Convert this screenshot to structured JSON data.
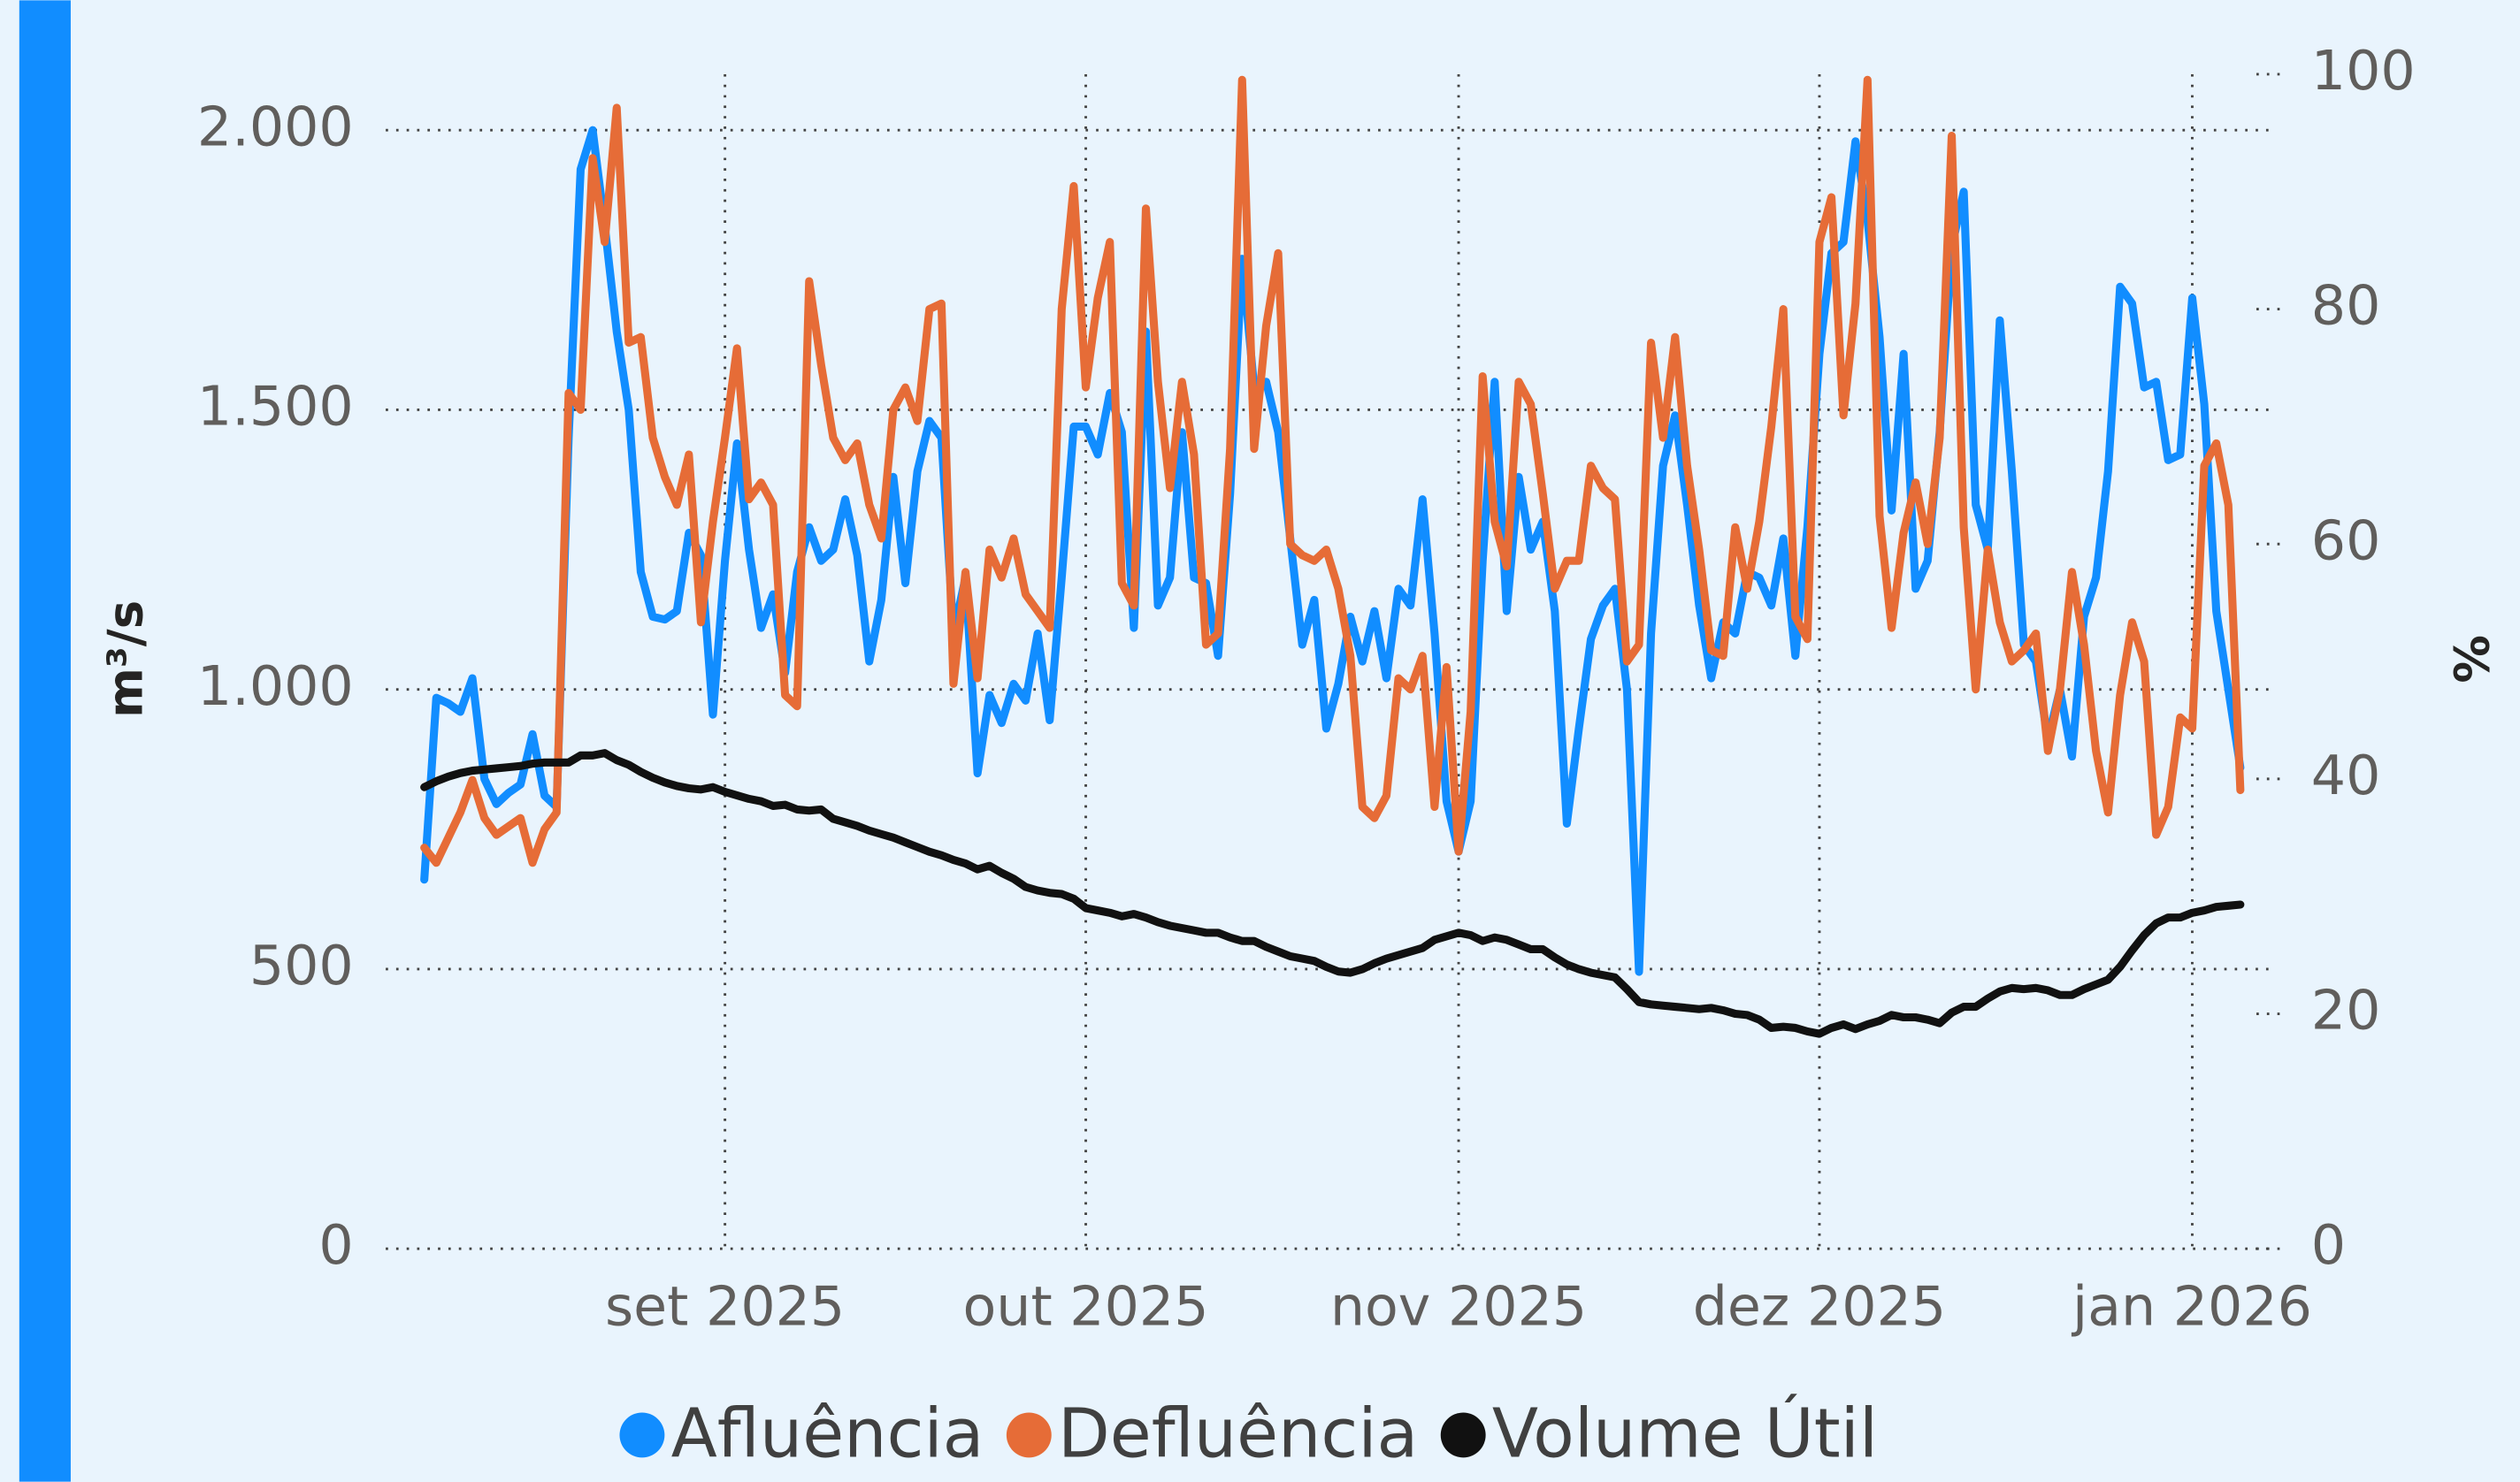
{
  "chart_data": {
    "type": "line",
    "y_label": "m³/s",
    "y2_label": "%",
    "categories": [
      null,
      null,
      null,
      null,
      null,
      null,
      null,
      null,
      null,
      null,
      null,
      null,
      null,
      null,
      null,
      null,
      null,
      null,
      null,
      null,
      null,
      null,
      null,
      null,
      null,
      "set 2025",
      null,
      null,
      null,
      null,
      null,
      null,
      null,
      null,
      null,
      null,
      null,
      null,
      null,
      null,
      null,
      null,
      null,
      null,
      null,
      null,
      null,
      null,
      null,
      null,
      null,
      null,
      null,
      null,
      null,
      "out 2025",
      null,
      null,
      null,
      null,
      null,
      null,
      null,
      null,
      null,
      null,
      null,
      null,
      null,
      null,
      null,
      null,
      null,
      null,
      null,
      null,
      null,
      null,
      null,
      null,
      null,
      null,
      null,
      null,
      null,
      null,
      "nov 2025",
      null,
      null,
      null,
      null,
      null,
      null,
      null,
      null,
      null,
      null,
      null,
      null,
      null,
      null,
      null,
      null,
      null,
      null,
      null,
      null,
      null,
      null,
      null,
      null,
      null,
      null,
      null,
      null,
      null,
      "dez 2025",
      null,
      null,
      null,
      null,
      null,
      null,
      null,
      null,
      null,
      null,
      null,
      null,
      null,
      null,
      null,
      null,
      null,
      null,
      null,
      null,
      null,
      null,
      null,
      null,
      null,
      null,
      null,
      null,
      null,
      null,
      "jan 2026",
      null,
      null,
      null,
      null
    ],
    "series": [
      {
        "name": "Afluência",
        "color": "#118dff",
        "values": [
          660,
          985,
          975,
          960,
          1020,
          840,
          795,
          815,
          830,
          920,
          810,
          790,
          1450,
          1930,
          2000,
          1830,
          1640,
          1500,
          1210,
          1130,
          1125,
          1140,
          1280,
          1240,
          955,
          1230,
          1440,
          1250,
          1110,
          1170,
          1030,
          1210,
          1290,
          1230,
          1250,
          1340,
          1240,
          1050,
          1160,
          1380,
          1190,
          1390,
          1480,
          1450,
          1100,
          1200,
          850,
          990,
          940,
          1010,
          980,
          1100,
          945,
          1200,
          1470,
          1470,
          1420,
          1530,
          1460,
          1110,
          1640,
          1150,
          1200,
          1460,
          1200,
          1190,
          1060,
          1350,
          1770,
          1540,
          1550,
          1460,
          1270,
          1080,
          1160,
          930,
          1010,
          1130,
          1050,
          1140,
          1020,
          1180,
          1150,
          1340,
          1100,
          800,
          710,
          800,
          1230,
          1550,
          1140,
          1380,
          1250,
          1300,
          1140,
          760,
          930,
          1090,
          1150,
          1180,
          1000,
          495,
          1100,
          1400,
          1490,
          1330,
          1150,
          1020,
          1120,
          1100,
          1210,
          1200,
          1150,
          1270,
          1060,
          1290,
          1600,
          1780,
          1800,
          1980,
          1840,
          1630,
          1320,
          1600,
          1180,
          1230,
          1460,
          1790,
          1890,
          1330,
          1250,
          1660,
          1390,
          1080,
          1050,
          910,
          1000,
          880,
          1130,
          1200,
          1390,
          1720,
          1690,
          1540,
          1550,
          1410,
          1420,
          1700,
          1510,
          1140,
          1000,
          860
        ]
      },
      {
        "name": "Defluência",
        "color": "#e66c37",
        "values": [
          717,
          690,
          735,
          780,
          838,
          770,
          740,
          755,
          770,
          690,
          750,
          780,
          1530,
          1500,
          1950,
          1800,
          2040,
          1620,
          1630,
          1450,
          1380,
          1330,
          1420,
          1120,
          1300,
          1450,
          1610,
          1340,
          1370,
          1330,
          990,
          970,
          1730,
          1580,
          1450,
          1410,
          1440,
          1330,
          1270,
          1500,
          1540,
          1480,
          1680,
          1690,
          1010,
          1210,
          1020,
          1250,
          1200,
          1270,
          1170,
          1140,
          1110,
          1680,
          1900,
          1540,
          1700,
          1800,
          1190,
          1150,
          1860,
          1550,
          1360,
          1550,
          1420,
          1080,
          1100,
          1430,
          2090,
          1430,
          1650,
          1780,
          1260,
          1240,
          1230,
          1250,
          1180,
          1060,
          790,
          770,
          810,
          1020,
          1000,
          1060,
          790,
          1040,
          710,
          960,
          1560,
          1300,
          1220,
          1550,
          1510,
          1350,
          1180,
          1230,
          1230,
          1400,
          1360,
          1340,
          1050,
          1080,
          1620,
          1450,
          1630,
          1400,
          1250,
          1070,
          1060,
          1290,
          1180,
          1300,
          1470,
          1680,
          1130,
          1090,
          1800,
          1880,
          1490,
          1690,
          2090,
          1310,
          1110,
          1280,
          1370,
          1260,
          1450,
          1990,
          1290,
          1000,
          1250,
          1120,
          1050,
          1070,
          1100,
          890,
          1000,
          1210,
          1080,
          890,
          780,
          990,
          1120,
          1050,
          740,
          790,
          950,
          930,
          1400,
          1440,
          1330,
          820
        ]
      },
      {
        "name": "Volume Útil",
        "color": "#111111",
        "axis": "y2",
        "values": [
          39.3,
          39.8,
          40.2,
          40.5,
          40.7,
          40.8,
          40.9,
          41.0,
          41.1,
          41.3,
          41.4,
          41.4,
          41.4,
          42.0,
          42.0,
          42.2,
          41.6,
          41.2,
          40.6,
          40.1,
          39.7,
          39.4,
          39.2,
          39.1,
          39.3,
          38.9,
          38.6,
          38.3,
          38.1,
          37.7,
          37.8,
          37.4,
          37.3,
          37.4,
          36.6,
          36.3,
          36.0,
          35.6,
          35.3,
          35.0,
          34.6,
          34.2,
          33.8,
          33.5,
          33.1,
          32.8,
          32.3,
          32.6,
          32.0,
          31.5,
          30.8,
          30.5,
          30.3,
          30.2,
          29.8,
          29.0,
          28.8,
          28.6,
          28.3,
          28.5,
          28.2,
          27.8,
          27.5,
          27.3,
          27.1,
          26.9,
          26.9,
          26.5,
          26.2,
          26.2,
          25.7,
          25.3,
          24.9,
          24.7,
          24.5,
          24.0,
          23.6,
          23.5,
          23.8,
          24.3,
          24.7,
          25.0,
          25.3,
          25.6,
          26.3,
          26.6,
          26.9,
          26.7,
          26.2,
          26.5,
          26.3,
          25.9,
          25.5,
          25.5,
          24.8,
          24.2,
          23.8,
          23.5,
          23.3,
          23.1,
          22.1,
          21.0,
          20.8,
          20.7,
          20.6,
          20.5,
          20.4,
          20.5,
          20.3,
          20.0,
          19.9,
          19.5,
          18.8,
          18.9,
          18.8,
          18.5,
          18.3,
          18.8,
          19.1,
          18.7,
          19.1,
          19.4,
          19.9,
          19.7,
          19.7,
          19.5,
          19.2,
          20.1,
          20.6,
          20.6,
          21.3,
          21.9,
          22.2,
          22.1,
          22.2,
          22.0,
          21.6,
          21.6,
          22.1,
          22.5,
          22.9,
          24.0,
          25.4,
          26.7,
          27.7,
          28.2,
          28.2,
          28.6,
          28.8,
          29.1,
          29.2,
          29.3
        ]
      }
    ],
    "ylim": [
      0,
      2100
    ],
    "yticks": [
      0,
      500,
      {
        "value": 1000,
        "label": "1.000"
      },
      {
        "value": 1500,
        "label": "1.500"
      },
      {
        "value": 2000,
        "label": "2.000"
      }
    ],
    "y2lim": [
      0,
      100
    ],
    "y2ticks": [
      0,
      20,
      40,
      60,
      80,
      100
    ],
    "grid": true,
    "legend": "bottom"
  }
}
